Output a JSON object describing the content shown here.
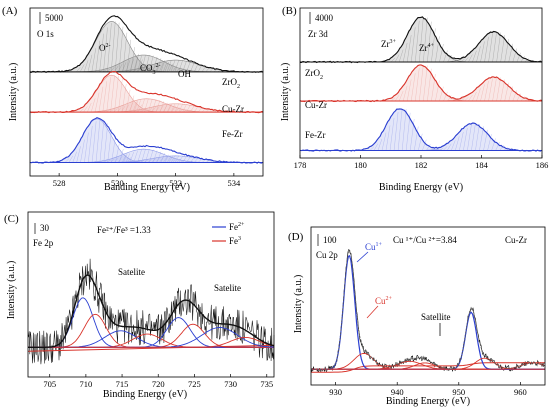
{
  "colors": {
    "black": "#111111",
    "red": "#d9342b",
    "blue": "#2b3fd1",
    "pink": "#e9a09a",
    "lightblue": "#8f9be8",
    "gray": "#888888"
  },
  "chart_data": [
    {
      "panel": "(A)",
      "type": "line",
      "element_label": "O 1s",
      "scale_bar": "5000",
      "xlabel": "Banding Energy (eV)",
      "ylabel": "Intensity (a.u.)",
      "xlim": [
        527,
        535
      ],
      "xticks": [
        528,
        530,
        532,
        534
      ],
      "peak_labels": [
        {
          "text": "O",
          "sup": "2-",
          "x": 529.8
        },
        {
          "text": "CO",
          "sub": "3",
          "sup": "2-",
          "x": 530.9
        },
        {
          "text": "OH",
          "x": 532.0
        }
      ],
      "series": [
        {
          "name": "ZrO",
          "name_sub": "2",
          "color": "black",
          "baseline": 0.62,
          "components": [
            [
              529.8,
              0.55,
              0.3
            ],
            [
              530.9,
              0.7,
              0.1
            ],
            [
              532.0,
              0.8,
              0.07
            ]
          ]
        },
        {
          "name": "Cu-Zr",
          "color": "red",
          "baseline": 0.38,
          "components": [
            [
              529.8,
              0.5,
              0.22
            ],
            [
              531.0,
              0.7,
              0.08
            ],
            [
              532.0,
              0.8,
              0.05
            ]
          ]
        },
        {
          "name": "Fe-Zr",
          "color": "blue",
          "baseline": 0.08,
          "components": [
            [
              529.3,
              0.5,
              0.26
            ],
            [
              530.9,
              0.7,
              0.08
            ],
            [
              532.0,
              0.8,
              0.04
            ]
          ]
        }
      ]
    },
    {
      "panel": "(B)",
      "type": "line",
      "element_label": "Zr 3d",
      "scale_bar": "4000",
      "xlabel": "Binding Energy (eV)",
      "ylabel": "Intensity (a.u.)",
      "xlim": [
        178,
        186
      ],
      "xticks": [
        178,
        180,
        182,
        184,
        186
      ],
      "peak_labels": [
        {
          "text": "Zr",
          "sup": "3+",
          "x": 182.0
        },
        {
          "text": "Zr",
          "sup": "4+",
          "x": 183.4
        }
      ],
      "series": [
        {
          "name": "ZrO",
          "name_sub": "2",
          "color": "black",
          "baseline": 0.64,
          "components": [
            [
              182.0,
              0.45,
              0.3
            ],
            [
              184.4,
              0.5,
              0.2
            ]
          ]
        },
        {
          "name": "Cu-Zr",
          "color": "red",
          "baseline": 0.38,
          "components": [
            [
              182.0,
              0.45,
              0.24
            ],
            [
              184.4,
              0.5,
              0.16
            ]
          ]
        },
        {
          "name": "Fe-Zr",
          "color": "blue",
          "baseline": 0.05,
          "components": [
            [
              181.3,
              0.45,
              0.28
            ],
            [
              183.7,
              0.5,
              0.18
            ]
          ]
        }
      ]
    },
    {
      "panel": "(C)",
      "type": "line",
      "element_label": "Fe 2p",
      "scale_bar": "30",
      "ratio_label": "Fe²⁺/Fe³ =1.33",
      "xlabel": "Binding Energy (eV)",
      "ylabel": "Intensity (a.u.)",
      "xlim": [
        702,
        736
      ],
      "xticks": [
        705,
        710,
        715,
        720,
        725,
        730,
        735
      ],
      "legend": [
        {
          "text": "Fe",
          "sup": "2+",
          "color": "blue"
        },
        {
          "text": "Fe",
          "sup": "3",
          "color": "red"
        }
      ],
      "annotations": [
        {
          "text": "Satelite",
          "x": 715.5
        },
        {
          "text": "Satelite",
          "x": 728.5
        }
      ]
    },
    {
      "panel": "(D)",
      "type": "line",
      "element_label": "Cu 2p",
      "scale_bar": "100",
      "ratio_label": "Cu ¹⁺/Cu ²⁺=3.84",
      "sample_label": "Cu-Zr",
      "xlabel": "Binding Energy (eV)",
      "ylabel": "Intensity (a.u.)",
      "xlim": [
        926,
        964
      ],
      "xticks": [
        930,
        940,
        950,
        960
      ],
      "peak_labels": [
        {
          "text": "Cu",
          "sup": "1+",
          "color": "blue",
          "x": 932.2
        },
        {
          "text": "Cu",
          "sup": "2+",
          "color": "red",
          "x": 934.5
        }
      ],
      "annotations": [
        {
          "text": "Satellite",
          "x": 943.5
        }
      ]
    }
  ]
}
